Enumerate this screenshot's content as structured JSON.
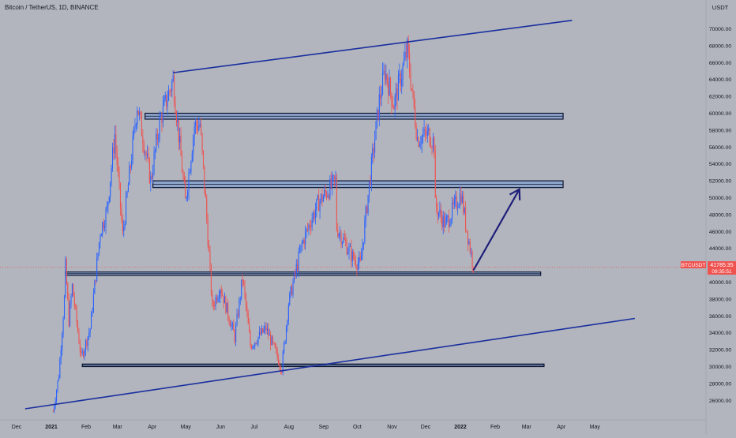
{
  "header": {
    "symbol_title": "Bitcoin / TetherUS, 1D, BINANCE",
    "currency": "USDT"
  },
  "price_tag": {
    "label": "BTCUSDT",
    "price": "41785.35",
    "countdown": "09:35:51"
  },
  "colors": {
    "background": "#b2b5be",
    "up_candle": "#2962ff",
    "down_candle": "#ef5350",
    "trendline": "#1a2f9e",
    "zone_fill": "#8ea4c9",
    "arrow": "#1f1f7a",
    "price_line": "#ef5350"
  },
  "chart_data": {
    "type": "candlestick",
    "title": "Bitcoin / TetherUS, 1D, BINANCE",
    "y_unit": "USDT",
    "ylim": [
      24000,
      71000
    ],
    "y_ticks": [
      "26000.00",
      "28000.00",
      "30000.00",
      "32000.00",
      "34000.00",
      "36000.00",
      "38000.00",
      "40000.00",
      "42000.00",
      "44000.00",
      "46000.00",
      "48000.00",
      "50000.00",
      "52000.00",
      "54000.00",
      "56000.00",
      "58000.00",
      "60000.00",
      "62000.00",
      "64000.00",
      "66000.00",
      "68000.00",
      "70000.00"
    ],
    "x_ticks": [
      "Dec",
      "2021",
      "Feb",
      "Mar",
      "Apr",
      "May",
      "Jun",
      "Jul",
      "Aug",
      "Sep",
      "Oct",
      "Nov",
      "Dec",
      "2022",
      "Feb",
      "Mar",
      "Apr",
      "May"
    ],
    "last_price": 41785.35,
    "price_path": [
      {
        "date": "2020-12-28",
        "price": 24700
      },
      {
        "date": "2021-01-02",
        "price": 29000
      },
      {
        "date": "2021-01-07",
        "price": 38000
      },
      {
        "date": "2021-01-08",
        "price": 41800
      },
      {
        "date": "2021-01-11",
        "price": 35500
      },
      {
        "date": "2021-01-14",
        "price": 39500
      },
      {
        "date": "2021-01-22",
        "price": 31000
      },
      {
        "date": "2021-01-30",
        "price": 34500
      },
      {
        "date": "2021-02-08",
        "price": 46000
      },
      {
        "date": "2021-02-14",
        "price": 48500
      },
      {
        "date": "2021-02-21",
        "price": 57500
      },
      {
        "date": "2021-02-28",
        "price": 45500
      },
      {
        "date": "2021-03-13",
        "price": 61000
      },
      {
        "date": "2021-03-25",
        "price": 52000
      },
      {
        "date": "2021-04-02",
        "price": 59000
      },
      {
        "date": "2021-04-14",
        "price": 64000
      },
      {
        "date": "2021-04-25",
        "price": 49500
      },
      {
        "date": "2021-05-03",
        "price": 58500
      },
      {
        "date": "2021-05-08",
        "price": 58700
      },
      {
        "date": "2021-05-13",
        "price": 49500
      },
      {
        "date": "2021-05-19",
        "price": 37000
      },
      {
        "date": "2021-05-26",
        "price": 39500
      },
      {
        "date": "2021-06-08",
        "price": 33500
      },
      {
        "date": "2021-06-15",
        "price": 40500
      },
      {
        "date": "2021-06-22",
        "price": 32500
      },
      {
        "date": "2021-07-06",
        "price": 34500
      },
      {
        "date": "2021-07-20",
        "price": 29800
      },
      {
        "date": "2021-07-26",
        "price": 37500
      },
      {
        "date": "2021-08-07",
        "price": 44500
      },
      {
        "date": "2021-08-14",
        "price": 47000
      },
      {
        "date": "2021-08-22",
        "price": 49500
      },
      {
        "date": "2021-09-06",
        "price": 52000
      },
      {
        "date": "2021-09-07",
        "price": 46500
      },
      {
        "date": "2021-09-21",
        "price": 43000
      },
      {
        "date": "2021-09-28",
        "price": 42000
      },
      {
        "date": "2021-10-06",
        "price": 51500
      },
      {
        "date": "2021-10-15",
        "price": 61500
      },
      {
        "date": "2021-10-20",
        "price": 65000
      },
      {
        "date": "2021-10-28",
        "price": 61000
      },
      {
        "date": "2021-11-09",
        "price": 67500
      },
      {
        "date": "2021-11-18",
        "price": 57000
      },
      {
        "date": "2021-11-28",
        "price": 57500
      },
      {
        "date": "2021-12-03",
        "price": 56500
      },
      {
        "date": "2021-12-04",
        "price": 49000
      },
      {
        "date": "2021-12-13",
        "price": 46800
      },
      {
        "date": "2021-12-27",
        "price": 50500
      },
      {
        "date": "2021-12-31",
        "price": 47000
      },
      {
        "date": "2022-01-07",
        "price": 41785
      }
    ],
    "horizontal_zones": [
      {
        "from": "2021-03-20",
        "to": "2022-03-28",
        "low": 59300,
        "high": 60000
      },
      {
        "from": "2021-03-27",
        "to": "2022-03-28",
        "low": 51200,
        "high": 52000
      },
      {
        "from": "2021-01-08",
        "to": "2022-03-08",
        "low": 40800,
        "high": 41200
      },
      {
        "from": "2021-01-23",
        "to": "2022-03-11",
        "low": 30000,
        "high": 30300
      }
    ],
    "trendlines": [
      {
        "from": {
          "date": "2020-12-03",
          "price": 25000
        },
        "to": {
          "date": "2022-05-31",
          "price": 35700
        }
      },
      {
        "from": {
          "date": "2021-04-14",
          "price": 64800
        },
        "to": {
          "date": "2022-04-05",
          "price": 71000
        }
      }
    ],
    "projection_arrow": {
      "from": {
        "date": "2022-01-07",
        "price": 41400
      },
      "to": {
        "date": "2022-02-17",
        "price": 51000
      }
    },
    "grid": false
  }
}
